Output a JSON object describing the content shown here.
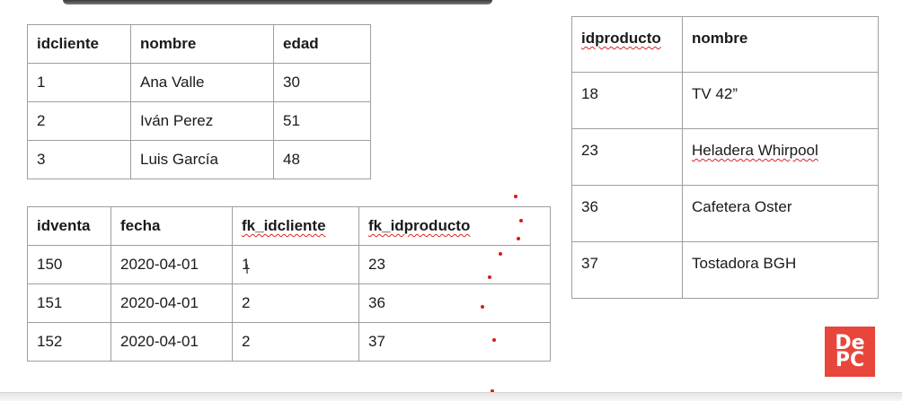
{
  "clientes": {
    "headers": [
      "idcliente",
      "nombre",
      "edad"
    ],
    "rows": [
      [
        "1",
        "Ana Valle",
        "30"
      ],
      [
        "2",
        "Iván Perez",
        "51"
      ],
      [
        "3",
        "Luis García",
        "48"
      ]
    ]
  },
  "ventas": {
    "headers": [
      "idventa",
      "fecha",
      "fk_idcliente",
      "fk_idproducto"
    ],
    "rows": [
      [
        "150",
        "2020-04-01",
        "1",
        "23"
      ],
      [
        "151",
        "2020-04-01",
        "2",
        "36"
      ],
      [
        "152",
        "2020-04-01",
        "2",
        "37"
      ]
    ]
  },
  "productos": {
    "headers": [
      "idproducto",
      "nombre"
    ],
    "rows": [
      [
        "18",
        "TV 42”"
      ],
      [
        "23",
        "Heladera Whirpool"
      ],
      [
        "36",
        "Cafetera Oster"
      ],
      [
        "37",
        "Tostadora BGH"
      ]
    ]
  },
  "logo": {
    "line1": "De",
    "line2": "PC"
  },
  "cursor_glyph": "I",
  "colors": {
    "annotation_dot": "#d81a1a",
    "logo_bg": "#e8463b",
    "grid": "#9e9e9e"
  }
}
